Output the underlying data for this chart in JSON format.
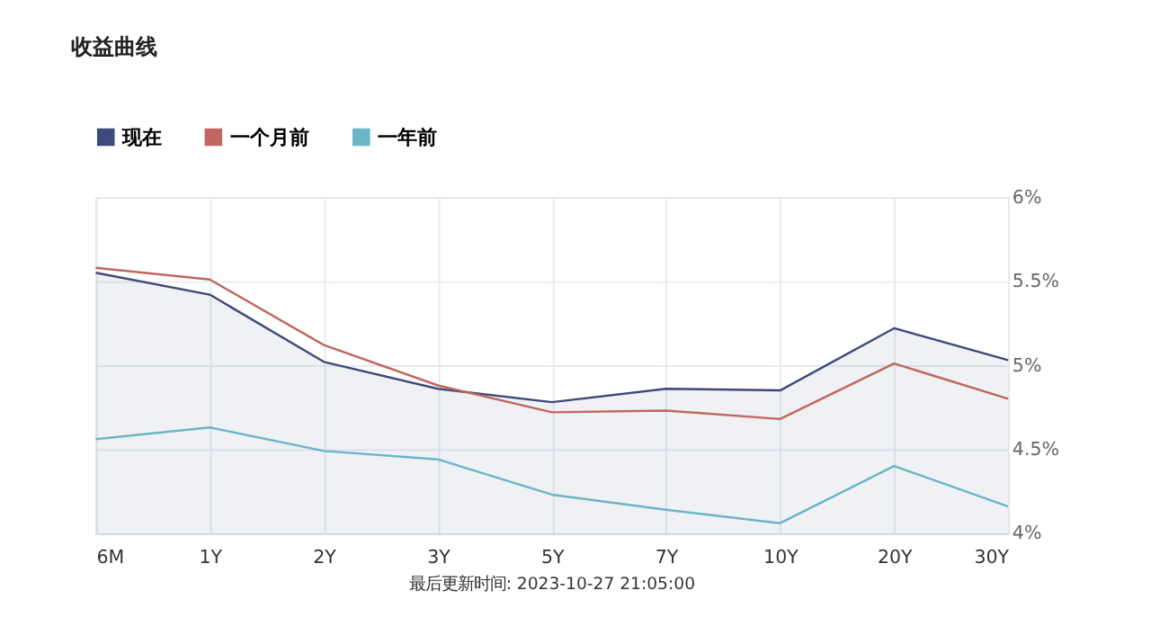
{
  "chart_data": {
    "type": "line",
    "title": "收益曲线",
    "categories": [
      "6M",
      "1Y",
      "2Y",
      "3Y",
      "5Y",
      "7Y",
      "10Y",
      "20Y",
      "30Y"
    ],
    "series": [
      {
        "name": "现在",
        "type": "area",
        "color": "#3f4a7a",
        "values": [
          5.55,
          5.42,
          5.02,
          4.86,
          4.78,
          4.86,
          4.85,
          5.22,
          5.03
        ]
      },
      {
        "name": "一个月前",
        "color": "#c0675f",
        "values": [
          5.58,
          5.51,
          5.12,
          4.88,
          4.72,
          4.73,
          4.68,
          5.01,
          4.8
        ]
      },
      {
        "name": "一年前",
        "color": "#6bb5c8",
        "values": [
          4.56,
          4.63,
          4.49,
          4.44,
          4.23,
          4.14,
          4.06,
          4.4,
          4.16
        ]
      }
    ],
    "ylim": [
      4,
      6
    ],
    "yticks": [
      {
        "value": 4,
        "label": "4%"
      },
      {
        "value": 4.5,
        "label": "4.5%"
      },
      {
        "value": 5,
        "label": "5%"
      },
      {
        "value": 5.5,
        "label": "5.5%"
      },
      {
        "value": 6,
        "label": "6%"
      }
    ],
    "grid": true,
    "legend": "top left",
    "marker": "none",
    "line_style": "solid",
    "annotations": [
      "最后更新时间: 2023-10-27 21:05:00"
    ]
  }
}
